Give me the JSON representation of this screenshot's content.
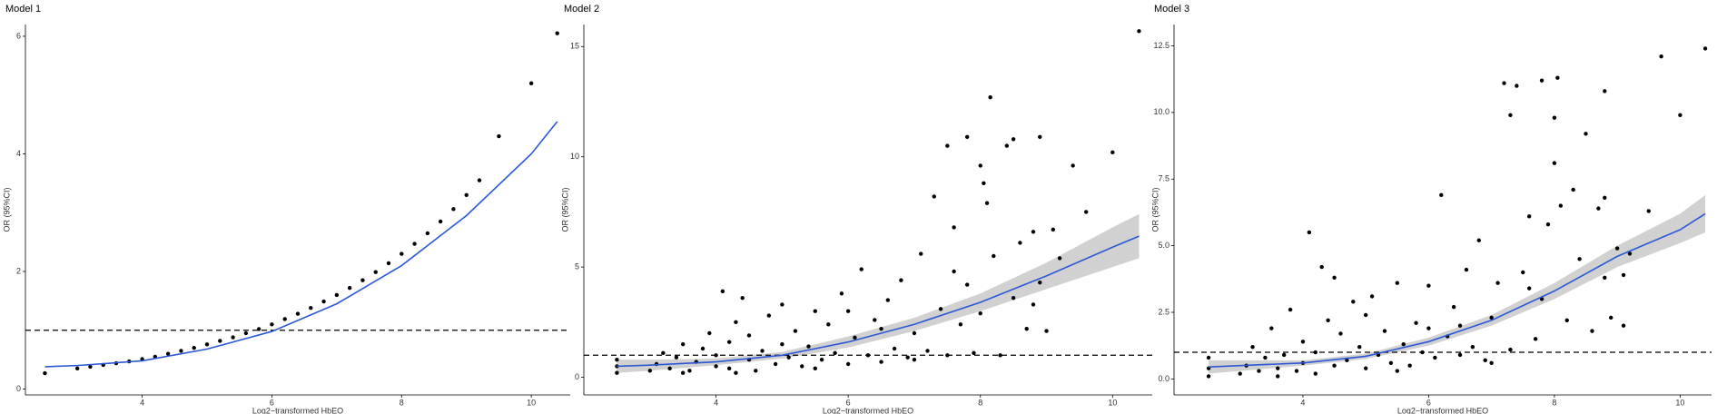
{
  "chart_data": [
    {
      "type": "scatter",
      "title": "Model 1",
      "xlabel": "Log2−transformed HbEO",
      "ylabel": "OR (95%CI)",
      "color": "#000000",
      "x": [
        2.5,
        3.0,
        3.2,
        3.4,
        3.6,
        3.8,
        4.0,
        4.2,
        4.4,
        4.6,
        4.8,
        5.0,
        5.2,
        5.4,
        5.6,
        5.8,
        6.0,
        6.2,
        6.4,
        6.6,
        6.8,
        7.0,
        7.2,
        7.4,
        7.6,
        7.8,
        8.0,
        8.2,
        8.4,
        8.6,
        8.8,
        9.0,
        9.2,
        9.5,
        10.0,
        10.4
      ],
      "values": [
        0.27,
        0.35,
        0.38,
        0.41,
        0.44,
        0.47,
        0.51,
        0.55,
        0.6,
        0.65,
        0.7,
        0.76,
        0.82,
        0.88,
        0.95,
        1.02,
        1.1,
        1.19,
        1.28,
        1.38,
        1.49,
        1.6,
        1.72,
        1.85,
        1.99,
        2.14,
        2.3,
        2.47,
        2.65,
        2.85,
        3.06,
        3.3,
        3.55,
        4.3,
        5.2,
        6.05
      ],
      "fit": {
        "color": "#2b59d6",
        "x": [
          2.5,
          3,
          4,
          5,
          6,
          7,
          8,
          9,
          10,
          10.4
        ],
        "values": [
          0.38,
          0.4,
          0.48,
          0.68,
          0.98,
          1.45,
          2.1,
          2.95,
          4.0,
          4.55
        ]
      },
      "hline": 1,
      "xlim": [
        2.2,
        10.6
      ],
      "ylim": [
        -0.1,
        6.2
      ],
      "xticks": [
        4,
        6,
        8,
        10
      ],
      "yticks": [
        0,
        2,
        4,
        6
      ]
    },
    {
      "type": "scatter",
      "title": "Model 2",
      "xlabel": "Log2−transformed HbEO",
      "ylabel": "OR (95%CI)",
      "color": "#000000",
      "x": [
        2.5,
        2.5,
        2.5,
        3.0,
        3.1,
        3.2,
        3.3,
        3.4,
        3.5,
        3.6,
        3.7,
        3.8,
        3.9,
        4.0,
        4.0,
        4.1,
        4.2,
        4.2,
        4.3,
        4.4,
        4.5,
        4.5,
        4.6,
        4.7,
        4.8,
        4.9,
        5.0,
        5.0,
        5.1,
        5.2,
        5.3,
        5.4,
        5.5,
        5.6,
        5.7,
        5.8,
        5.9,
        6.0,
        6.1,
        6.2,
        6.3,
        6.4,
        6.5,
        6.6,
        6.7,
        6.8,
        6.9,
        7.0,
        7.1,
        7.2,
        7.3,
        7.4,
        7.5,
        7.5,
        7.6,
        7.7,
        7.8,
        7.8,
        7.9,
        8.0,
        8.0,
        8.05,
        8.1,
        8.15,
        8.2,
        8.3,
        8.4,
        8.5,
        8.5,
        8.6,
        8.7,
        8.8,
        8.9,
        8.9,
        9.0,
        9.2,
        9.4,
        9.6,
        10.0,
        10.4,
        5.5,
        6.5,
        7.0,
        4.3,
        3.5,
        6.0,
        7.6,
        8.8,
        9.1
      ],
      "values": [
        0.2,
        0.5,
        0.8,
        0.3,
        0.6,
        1.1,
        0.4,
        0.9,
        1.5,
        0.3,
        0.7,
        1.3,
        2.0,
        0.5,
        1.0,
        3.9,
        0.4,
        1.6,
        2.5,
        3.6,
        0.8,
        1.9,
        0.3,
        1.2,
        2.8,
        0.6,
        1.5,
        3.3,
        0.9,
        2.1,
        0.5,
        1.4,
        3.0,
        0.8,
        2.4,
        1.1,
        3.8,
        0.6,
        1.8,
        4.9,
        1.0,
        2.6,
        0.7,
        3.5,
        1.3,
        4.4,
        0.9,
        2.0,
        5.6,
        1.2,
        8.2,
        3.1,
        10.5,
        1.0,
        6.8,
        2.4,
        10.9,
        4.2,
        1.1,
        9.6,
        2.9,
        8.8,
        7.9,
        12.7,
        5.5,
        1.0,
        10.5,
        3.6,
        10.8,
        6.1,
        2.2,
        6.6,
        10.9,
        4.3,
        2.1,
        5.4,
        9.6,
        7.5,
        10.2,
        15.7,
        0.4,
        2.2,
        0.8,
        0.2,
        0.2,
        3.0,
        4.8,
        3.3,
        6.7
      ],
      "fit": {
        "color": "#2b59d6",
        "x": [
          2.5,
          3,
          4,
          5,
          6,
          7,
          8,
          9,
          10,
          10.4
        ],
        "values": [
          0.5,
          0.55,
          0.7,
          1.0,
          1.6,
          2.4,
          3.4,
          4.6,
          5.9,
          6.4
        ],
        "lower": [
          0.2,
          0.3,
          0.55,
          0.85,
          1.35,
          2.1,
          3.0,
          4.0,
          5.0,
          5.4
        ],
        "upper": [
          0.8,
          0.8,
          0.85,
          1.15,
          1.85,
          2.7,
          3.8,
          5.2,
          6.8,
          7.4
        ]
      },
      "hline": 1,
      "xlim": [
        2.0,
        10.6
      ],
      "ylim": [
        -0.8,
        16
      ],
      "xticks": [
        4,
        6,
        8,
        10
      ],
      "yticks": [
        0,
        5,
        10,
        15
      ]
    },
    {
      "type": "scatter",
      "title": "Model 3",
      "xlabel": "Log2−transformed HbEO",
      "ylabel": "OR (95%CI)",
      "color": "#000000",
      "x": [
        2.5,
        2.5,
        2.5,
        3.0,
        3.1,
        3.2,
        3.3,
        3.4,
        3.5,
        3.6,
        3.7,
        3.8,
        3.9,
        4.0,
        4.0,
        4.1,
        4.2,
        4.3,
        4.4,
        4.5,
        4.5,
        4.6,
        4.7,
        4.8,
        4.9,
        5.0,
        5.0,
        5.1,
        5.2,
        5.3,
        5.4,
        5.5,
        5.6,
        5.7,
        5.8,
        5.9,
        6.0,
        6.1,
        6.2,
        6.3,
        6.4,
        6.5,
        6.6,
        6.7,
        6.8,
        6.9,
        7.0,
        7.1,
        7.2,
        7.3,
        7.3,
        7.4,
        7.5,
        7.6,
        7.7,
        7.8,
        7.8,
        7.9,
        8.0,
        8.0,
        8.05,
        8.1,
        8.2,
        8.3,
        8.4,
        8.5,
        8.6,
        8.7,
        8.8,
        8.8,
        8.9,
        9.0,
        9.1,
        9.2,
        9.5,
        9.7,
        10.0,
        10.4,
        5.5,
        6.5,
        7.0,
        4.2,
        3.6,
        6.0,
        7.6,
        8.8,
        9.1
      ],
      "values": [
        0.1,
        0.4,
        0.8,
        0.2,
        0.5,
        1.2,
        0.3,
        0.8,
        1.9,
        0.4,
        0.9,
        2.6,
        0.3,
        1.4,
        0.6,
        5.5,
        1.0,
        4.2,
        2.2,
        0.5,
        3.8,
        1.7,
        0.7,
        2.9,
        1.2,
        0.4,
        2.4,
        3.1,
        0.9,
        1.8,
        0.6,
        3.6,
        1.3,
        0.5,
        2.1,
        1.0,
        3.5,
        0.8,
        6.9,
        1.6,
        2.7,
        0.9,
        4.1,
        1.2,
        5.2,
        0.7,
        2.3,
        3.6,
        11.1,
        1.1,
        9.9,
        11.0,
        4.0,
        6.1,
        1.5,
        11.2,
        3.0,
        5.8,
        9.8,
        8.1,
        11.3,
        6.5,
        2.2,
        7.1,
        4.5,
        9.2,
        1.8,
        6.4,
        10.8,
        3.8,
        2.3,
        4.9,
        2.0,
        4.7,
        6.3,
        12.1,
        9.9,
        12.4,
        0.3,
        2.0,
        0.6,
        0.2,
        0.1,
        1.9,
        3.4,
        6.8,
        3.9
      ],
      "fit": {
        "color": "#2b59d6",
        "x": [
          2.5,
          3,
          4,
          5,
          6,
          7,
          8,
          9,
          10,
          10.4
        ],
        "values": [
          0.45,
          0.5,
          0.6,
          0.85,
          1.4,
          2.2,
          3.3,
          4.6,
          5.6,
          6.2
        ],
        "lower": [
          0.2,
          0.3,
          0.5,
          0.75,
          1.25,
          2.0,
          3.0,
          4.2,
          5.1,
          5.5
        ],
        "upper": [
          0.7,
          0.7,
          0.7,
          0.95,
          1.55,
          2.4,
          3.6,
          5.0,
          6.2,
          6.9
        ]
      },
      "hline": 1,
      "xlim": [
        1.95,
        10.5
      ],
      "ylim": [
        -0.6,
        13.3
      ],
      "xticks": [
        4,
        6,
        8,
        10
      ],
      "yticks": [
        {
          "value": 0,
          "label": "0.0"
        },
        {
          "value": 2.5,
          "label": "2.5"
        },
        {
          "value": 5,
          "label": "5.0"
        },
        {
          "value": 7.5,
          "label": "7.5"
        },
        {
          "value": 10,
          "label": "10.0"
        },
        12.5
      ]
    }
  ]
}
